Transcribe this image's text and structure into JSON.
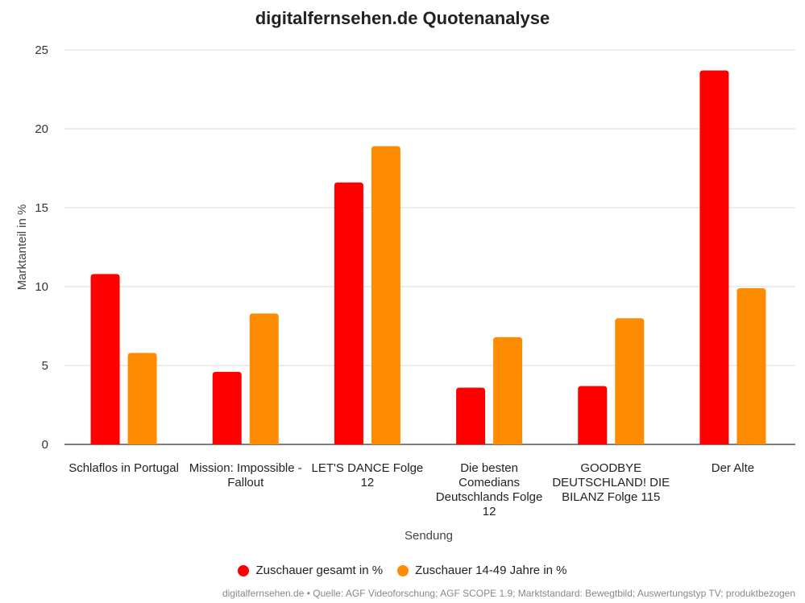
{
  "chart_data": {
    "type": "bar",
    "title": "digitalfernsehen.de Quotenanalyse",
    "xlabel": "Sendung",
    "ylabel": "Marktanteil in %",
    "ylim": [
      0,
      25
    ],
    "yticks": [
      0,
      5,
      10,
      15,
      20,
      25
    ],
    "categories": [
      [
        "Schlaflos in Portugal"
      ],
      [
        "Mission: Impossible -",
        "Fallout"
      ],
      [
        "LET'S DANCE Folge",
        "12"
      ],
      [
        "Die besten",
        "Comedians",
        "Deutschlands Folge",
        "12"
      ],
      [
        "GOODBYE",
        "DEUTSCHLAND! DIE",
        "BILANZ Folge 115"
      ],
      [
        "Der Alte"
      ]
    ],
    "series": [
      {
        "name": "Zuschauer gesamt in %",
        "color": "#ff0000",
        "values": [
          10.8,
          4.6,
          16.6,
          3.6,
          3.7,
          23.7
        ]
      },
      {
        "name": "Zuschauer 14-49 Jahre in %",
        "color": "#ff8c00",
        "values": [
          5.8,
          8.3,
          18.9,
          6.8,
          8.0,
          9.9
        ]
      }
    ],
    "grid": true,
    "legend": "bottom"
  },
  "footer": "digitalfernsehen.de • Quelle: AGF Videoforschung; AGF SCOPE 1.9; Marktstandard: Bewegtbild; Auswertungstyp TV; produktbezogen"
}
